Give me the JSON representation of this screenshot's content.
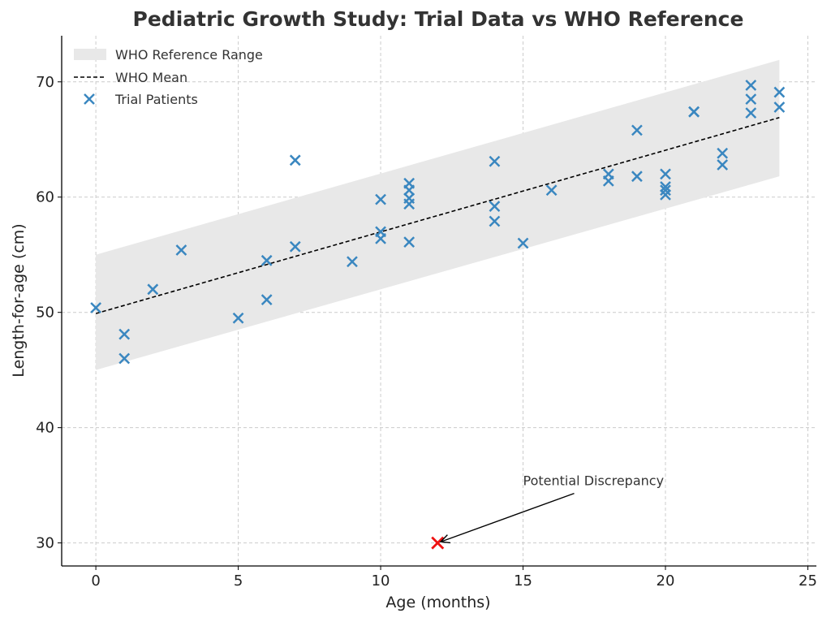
{
  "chart_data": {
    "type": "scatter",
    "title": "Pediatric Growth Study: Trial Data vs WHO Reference",
    "xlabel": "Age (months)",
    "ylabel": "Length-for-age (cm)",
    "xlim": [
      -1.2,
      25.3
    ],
    "ylim": [
      28,
      74
    ],
    "x_ticks": [
      0,
      5,
      10,
      15,
      20,
      25
    ],
    "y_ticks": [
      30,
      40,
      50,
      60,
      70
    ],
    "grid": true,
    "legend_position": "top-left",
    "legend": [
      "WHO Reference Range",
      "WHO Mean",
      "Trial Patients"
    ],
    "who_reference_range": {
      "name": "WHO Reference Range",
      "color": "#e8e8e8",
      "x": [
        0,
        24
      ],
      "lower": [
        45.0,
        61.8
      ],
      "upper": [
        55.0,
        71.9
      ]
    },
    "who_mean": {
      "name": "WHO Mean",
      "color": "#000000",
      "x": [
        0,
        24
      ],
      "y": [
        49.9,
        66.9
      ]
    },
    "trial_patients": {
      "name": "Trial Patients",
      "color": "#3a87c0",
      "points": [
        [
          0,
          50.4
        ],
        [
          1,
          48.1
        ],
        [
          1,
          46.0
        ],
        [
          2,
          52.0
        ],
        [
          3,
          55.4
        ],
        [
          5,
          49.5
        ],
        [
          6,
          54.5
        ],
        [
          6,
          51.1
        ],
        [
          7,
          63.2
        ],
        [
          7,
          55.7
        ],
        [
          9,
          54.4
        ],
        [
          10,
          59.8
        ],
        [
          10,
          57.0
        ],
        [
          10,
          56.4
        ],
        [
          11,
          61.2
        ],
        [
          11,
          60.6
        ],
        [
          11,
          59.9
        ],
        [
          11,
          59.4
        ],
        [
          11,
          56.1
        ],
        [
          14,
          63.1
        ],
        [
          14,
          59.2
        ],
        [
          14,
          57.9
        ],
        [
          15,
          56.0
        ],
        [
          16,
          60.6
        ],
        [
          18,
          62.0
        ],
        [
          18,
          61.4
        ],
        [
          19,
          65.8
        ],
        [
          19,
          61.8
        ],
        [
          20,
          62.0
        ],
        [
          20,
          60.9
        ],
        [
          20,
          60.6
        ],
        [
          20,
          60.2
        ],
        [
          21,
          67.4
        ],
        [
          21,
          67.4
        ],
        [
          22,
          63.8
        ],
        [
          22,
          62.8
        ],
        [
          23,
          69.7
        ],
        [
          23,
          68.5
        ],
        [
          23,
          67.3
        ],
        [
          24,
          69.1
        ],
        [
          24,
          67.8
        ]
      ]
    },
    "outlier": {
      "x": 12,
      "y": 30,
      "color": "#ee1111"
    },
    "annotation": {
      "text": "Potential Discrepancy",
      "target": [
        12,
        30
      ],
      "text_anchor_point": [
        15,
        35
      ]
    }
  }
}
